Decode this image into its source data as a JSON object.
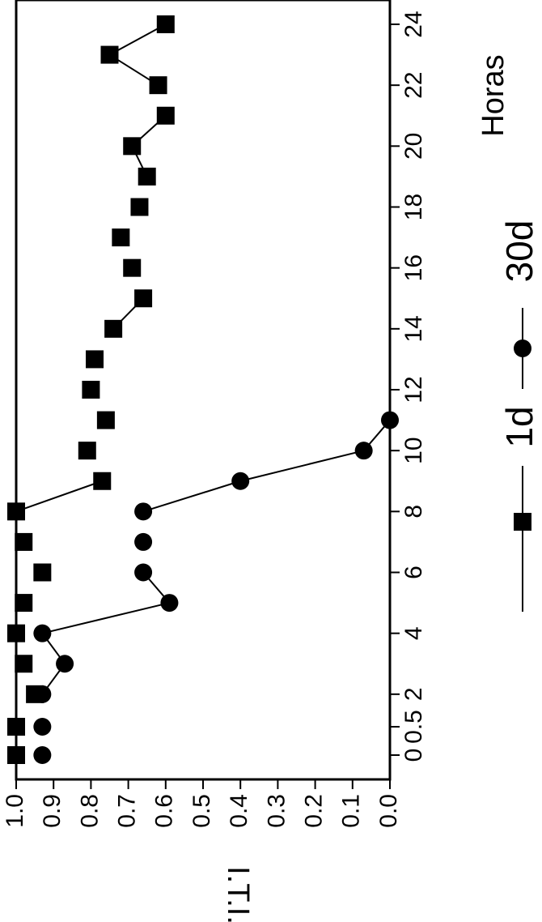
{
  "chart_data": {
    "type": "line",
    "orientation": "rotated-90-ccw",
    "x_axis": {
      "label": "Horas",
      "ticks": [
        "0.5",
        "0",
        "2",
        "4",
        "6",
        "8",
        "10",
        "12",
        "14",
        "16",
        "18",
        "20",
        "22",
        "24"
      ],
      "tick_display": [
        "0",
        "0.5",
        "2",
        "4",
        "6",
        "8",
        "10",
        "12",
        "14",
        "16",
        "18",
        "20",
        "22",
        "24"
      ]
    },
    "y_axis": {
      "label": "I.T.I.",
      "ylim": [
        0.0,
        1.0
      ],
      "ticks": [
        "1.0",
        "0.9",
        "0.8",
        "0.7",
        "0.6",
        "0.5",
        "0.4",
        "0.3",
        "0.2",
        "0.1",
        "0.0"
      ]
    },
    "grid": false,
    "legend_position": "right",
    "series": [
      {
        "name": "1d",
        "marker": "square",
        "points": [
          {
            "x": "0",
            "y": 1.0
          },
          {
            "x": "0.5",
            "y": 1.0
          },
          {
            "x": "2",
            "y": 0.95
          },
          {
            "x": "3",
            "y": 0.98
          },
          {
            "x": "4",
            "y": 1.0
          },
          {
            "x": "5",
            "y": 0.98
          },
          {
            "x": "6",
            "y": 0.93
          },
          {
            "x": "7",
            "y": 0.98
          },
          {
            "x": "8",
            "y": 1.0
          },
          {
            "x": "9",
            "y": 0.77
          },
          {
            "x": "10",
            "y": 0.81
          },
          {
            "x": "11",
            "y": 0.76
          },
          {
            "x": "12",
            "y": 0.8
          },
          {
            "x": "13",
            "y": 0.79
          },
          {
            "x": "14",
            "y": 0.74
          },
          {
            "x": "15",
            "y": 0.66
          },
          {
            "x": "16",
            "y": 0.69
          },
          {
            "x": "17",
            "y": 0.72
          },
          {
            "x": "18",
            "y": 0.67
          },
          {
            "x": "19",
            "y": 0.65
          },
          {
            "x": "20",
            "y": 0.69
          },
          {
            "x": "21",
            "y": 0.6
          },
          {
            "x": "22",
            "y": 0.62
          },
          {
            "x": "23",
            "y": 0.75
          },
          {
            "x": "24",
            "y": 0.6
          }
        ],
        "connected_segments": [
          [
            8,
            9
          ],
          [
            14,
            15
          ],
          [
            19,
            20
          ],
          [
            20,
            21
          ],
          [
            22,
            23
          ],
          [
            23,
            24
          ]
        ]
      },
      {
        "name": "30d",
        "marker": "circle",
        "points": [
          {
            "x": "0",
            "y": 0.93
          },
          {
            "x": "0.5",
            "y": 0.93
          },
          {
            "x": "2",
            "y": 0.93
          },
          {
            "x": "3",
            "y": 0.87
          },
          {
            "x": "4",
            "y": 0.93
          },
          {
            "x": "5",
            "y": 0.59
          },
          {
            "x": "6",
            "y": 0.66
          },
          {
            "x": "7",
            "y": 0.66
          },
          {
            "x": "8",
            "y": 0.66
          },
          {
            "x": "9",
            "y": 0.4
          },
          {
            "x": "10",
            "y": 0.07
          },
          {
            "x": "11",
            "y": 0.0
          }
        ],
        "connected_segments": [
          [
            2,
            3
          ],
          [
            3,
            4
          ],
          [
            4,
            5
          ],
          [
            5,
            6
          ],
          [
            8,
            9
          ],
          [
            9,
            10
          ],
          [
            10,
            11
          ]
        ]
      }
    ]
  }
}
